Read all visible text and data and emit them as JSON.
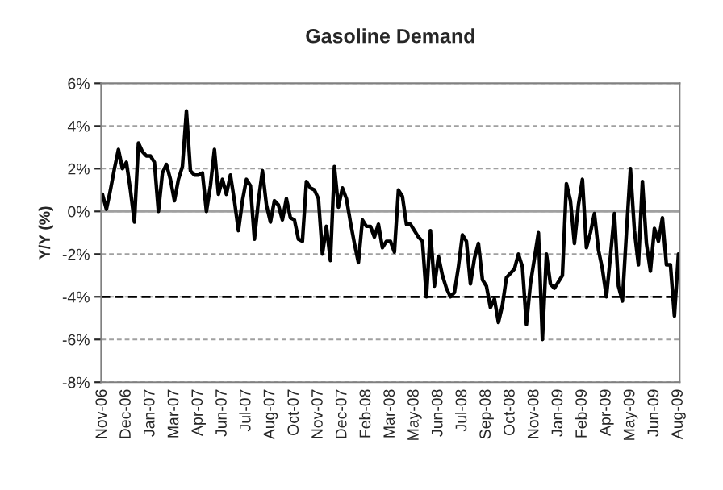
{
  "chart_data": {
    "type": "line",
    "title": "Gasoline Demand",
    "ylabel": "Y/Y (%)",
    "categories": [
      "Nov-06",
      null,
      null,
      null,
      null,
      null,
      "Dec-06",
      null,
      null,
      null,
      null,
      null,
      "Jan-07",
      null,
      null,
      null,
      null,
      null,
      "Mar-07",
      null,
      null,
      null,
      null,
      null,
      "Apr-07",
      null,
      null,
      null,
      null,
      null,
      "Jun-07",
      null,
      null,
      null,
      null,
      null,
      "Jul-07",
      null,
      null,
      null,
      null,
      null,
      "Aug-07",
      null,
      null,
      null,
      null,
      null,
      "Oct-07",
      null,
      null,
      null,
      null,
      null,
      "Nov-07",
      null,
      null,
      null,
      null,
      null,
      "Dec-07",
      null,
      null,
      null,
      null,
      null,
      "Feb-08",
      null,
      null,
      null,
      null,
      null,
      "Mar-08",
      null,
      null,
      null,
      null,
      null,
      "May-08",
      null,
      null,
      null,
      null,
      null,
      "Jun-08",
      null,
      null,
      null,
      null,
      null,
      "Jul-08",
      null,
      null,
      null,
      null,
      null,
      "Sep-08",
      null,
      null,
      null,
      null,
      null,
      "Oct-08",
      null,
      null,
      null,
      null,
      null,
      "Nov-08",
      null,
      null,
      null,
      null,
      null,
      "Jan-09",
      null,
      null,
      null,
      null,
      null,
      "Feb-09",
      null,
      null,
      null,
      null,
      null,
      "Apr-09",
      null,
      null,
      null,
      null,
      null,
      "May-09",
      null,
      null,
      null,
      null,
      null,
      "Jun-09",
      null,
      null,
      null,
      null,
      null,
      "Aug-09"
    ],
    "series": [
      {
        "color": "#000000",
        "values": [
          0.8,
          0.1,
          1.0,
          2.0,
          2.9,
          2.0,
          2.3,
          1.0,
          -0.5,
          3.2,
          2.8,
          2.6,
          2.6,
          2.3,
          0.0,
          1.8,
          2.2,
          1.5,
          0.5,
          1.5,
          2.1,
          4.7,
          1.9,
          1.7,
          1.7,
          1.8,
          0.0,
          1.2,
          2.9,
          0.8,
          1.5,
          0.8,
          1.7,
          0.5,
          -0.9,
          0.5,
          1.5,
          1.2,
          -1.3,
          0.5,
          1.9,
          0.3,
          -0.5,
          0.5,
          0.3,
          -0.4,
          0.6,
          -0.3,
          -0.4,
          -1.3,
          -1.4,
          1.4,
          1.1,
          1.0,
          0.6,
          -2.0,
          -0.7,
          -2.3,
          2.1,
          0.2,
          1.1,
          0.6,
          -0.5,
          -1.5,
          -2.4,
          -0.4,
          -0.7,
          -0.7,
          -1.2,
          -0.6,
          -1.7,
          -1.4,
          -1.4,
          -1.9,
          1.0,
          0.7,
          -0.6,
          -0.6,
          -0.9,
          -1.2,
          -1.4,
          -4.0,
          -0.9,
          -3.5,
          -2.1,
          -3.0,
          -3.6,
          -4.0,
          -3.8,
          -2.6,
          -1.1,
          -1.4,
          -3.4,
          -2.2,
          -1.5,
          -3.2,
          -3.5,
          -4.5,
          -4.1,
          -5.2,
          -4.4,
          -3.1,
          -2.9,
          -2.7,
          -2.0,
          -2.6,
          -5.3,
          -3.4,
          -2.2,
          -1.0,
          -6.0,
          -2.0,
          -3.4,
          -3.6,
          -3.3,
          -3.0,
          1.3,
          0.5,
          -1.5,
          0.3,
          1.5,
          -1.7,
          -1.0,
          -0.1,
          -1.8,
          -2.7,
          -4.0,
          -2.1,
          -0.1,
          -3.5,
          -4.2,
          -1.0,
          2.0,
          -0.9,
          -2.5,
          1.4,
          -1.5,
          -2.8,
          -0.8,
          -1.4,
          -0.3,
          -2.5,
          -2.5,
          -4.9,
          -2.0
        ]
      }
    ],
    "ylim": [
      -8,
      6
    ],
    "yticks": [
      {
        "value": -8,
        "label": "-8%"
      },
      {
        "value": -6,
        "label": "-6%"
      },
      {
        "value": -4,
        "label": "-4%"
      },
      {
        "value": -2,
        "label": "-2%"
      },
      {
        "value": 0,
        "label": "0%"
      },
      {
        "value": 2,
        "label": "2%"
      },
      {
        "value": 4,
        "label": "4%"
      },
      {
        "value": 6,
        "label": "6%"
      }
    ],
    "grid": "y",
    "line_style": "solid",
    "legend": false,
    "ref_lines": [
      {
        "axis": "y",
        "value": 0,
        "color": "#a0a0a0",
        "line_style": "solid"
      },
      {
        "axis": "y",
        "value": -4,
        "color": "#000000",
        "line_style": "dashed"
      }
    ]
  }
}
